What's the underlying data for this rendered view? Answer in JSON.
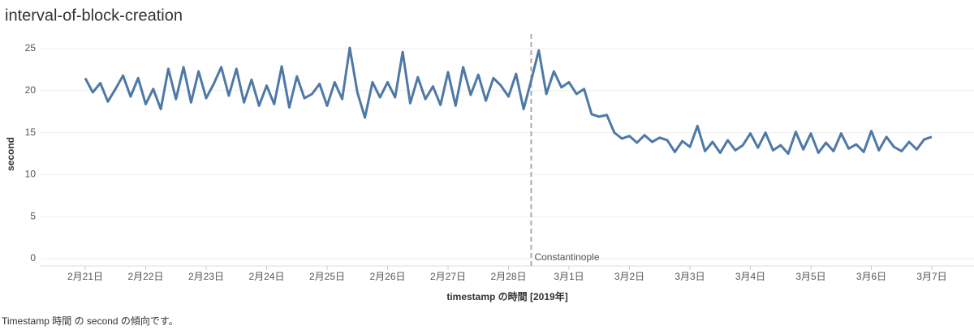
{
  "chart_data": {
    "type": "line",
    "title": "interval-of-block-creation",
    "x_label": "timestamp の時間 [2019年]",
    "y_label": "second",
    "caption": "Timestamp 時間 の second の傾向です。",
    "categories": [
      "2月21日",
      null,
      null,
      null,
      null,
      null,
      null,
      null,
      "2月22日",
      null,
      null,
      null,
      null,
      null,
      null,
      null,
      "2月23日",
      null,
      null,
      null,
      null,
      null,
      null,
      null,
      "2月24日",
      null,
      null,
      null,
      null,
      null,
      null,
      null,
      "2月25日",
      null,
      null,
      null,
      null,
      null,
      null,
      null,
      "2月26日",
      null,
      null,
      null,
      null,
      null,
      null,
      null,
      "2月27日",
      null,
      null,
      null,
      null,
      null,
      null,
      null,
      "2月28日",
      null,
      null,
      null,
      null,
      null,
      null,
      null,
      "3月1日",
      null,
      null,
      null,
      null,
      null,
      null,
      null,
      "3月2日",
      null,
      null,
      null,
      null,
      null,
      null,
      null,
      "3月3日",
      null,
      null,
      null,
      null,
      null,
      null,
      null,
      "3月4日",
      null,
      null,
      null,
      null,
      null,
      null,
      null,
      "3月5日",
      null,
      null,
      null,
      null,
      null,
      null,
      null,
      "3月6日",
      null,
      null,
      null,
      null,
      null,
      null,
      null,
      "3月7日"
    ],
    "series": [
      {
        "name": "second",
        "color": "#4e79a7",
        "values": [
          21.5,
          19.8,
          20.9,
          18.7,
          20.2,
          21.8,
          19.3,
          21.5,
          18.4,
          20.2,
          17.8,
          22.6,
          19.0,
          22.8,
          18.6,
          22.3,
          19.1,
          20.8,
          22.8,
          19.4,
          22.6,
          18.6,
          21.3,
          18.2,
          20.6,
          18.4,
          22.9,
          18.0,
          21.7,
          19.1,
          19.6,
          20.8,
          18.2,
          21.0,
          19.0,
          25.1,
          19.8,
          16.8,
          21.0,
          19.2,
          21.0,
          19.2,
          24.6,
          18.5,
          21.6,
          19.0,
          20.5,
          18.3,
          22.2,
          18.2,
          22.8,
          19.5,
          21.9,
          18.8,
          21.5,
          20.6,
          19.3,
          22.0,
          17.8,
          21.2,
          24.8,
          19.6,
          22.3,
          20.4,
          21.0,
          19.6,
          20.2,
          17.2,
          16.9,
          17.1,
          15.0,
          14.3,
          14.6,
          13.8,
          14.7,
          13.9,
          14.4,
          14.1,
          12.7,
          14.0,
          13.3,
          15.8,
          12.8,
          13.9,
          12.6,
          14.1,
          12.9,
          13.5,
          14.9,
          13.2,
          15.0,
          12.9,
          13.5,
          12.5,
          15.1,
          13.0,
          14.9,
          12.6,
          13.8,
          12.8,
          14.9,
          13.1,
          13.6,
          12.7,
          15.2,
          12.9,
          14.5,
          13.3,
          12.8,
          13.9,
          13.0,
          14.2,
          14.5
        ]
      }
    ],
    "reference_line": {
      "index": 59,
      "label": "Constantinople"
    },
    "ylim": [
      0,
      25
    ],
    "yticks": [
      0,
      5,
      10,
      15,
      20,
      25
    ],
    "grid": true
  }
}
